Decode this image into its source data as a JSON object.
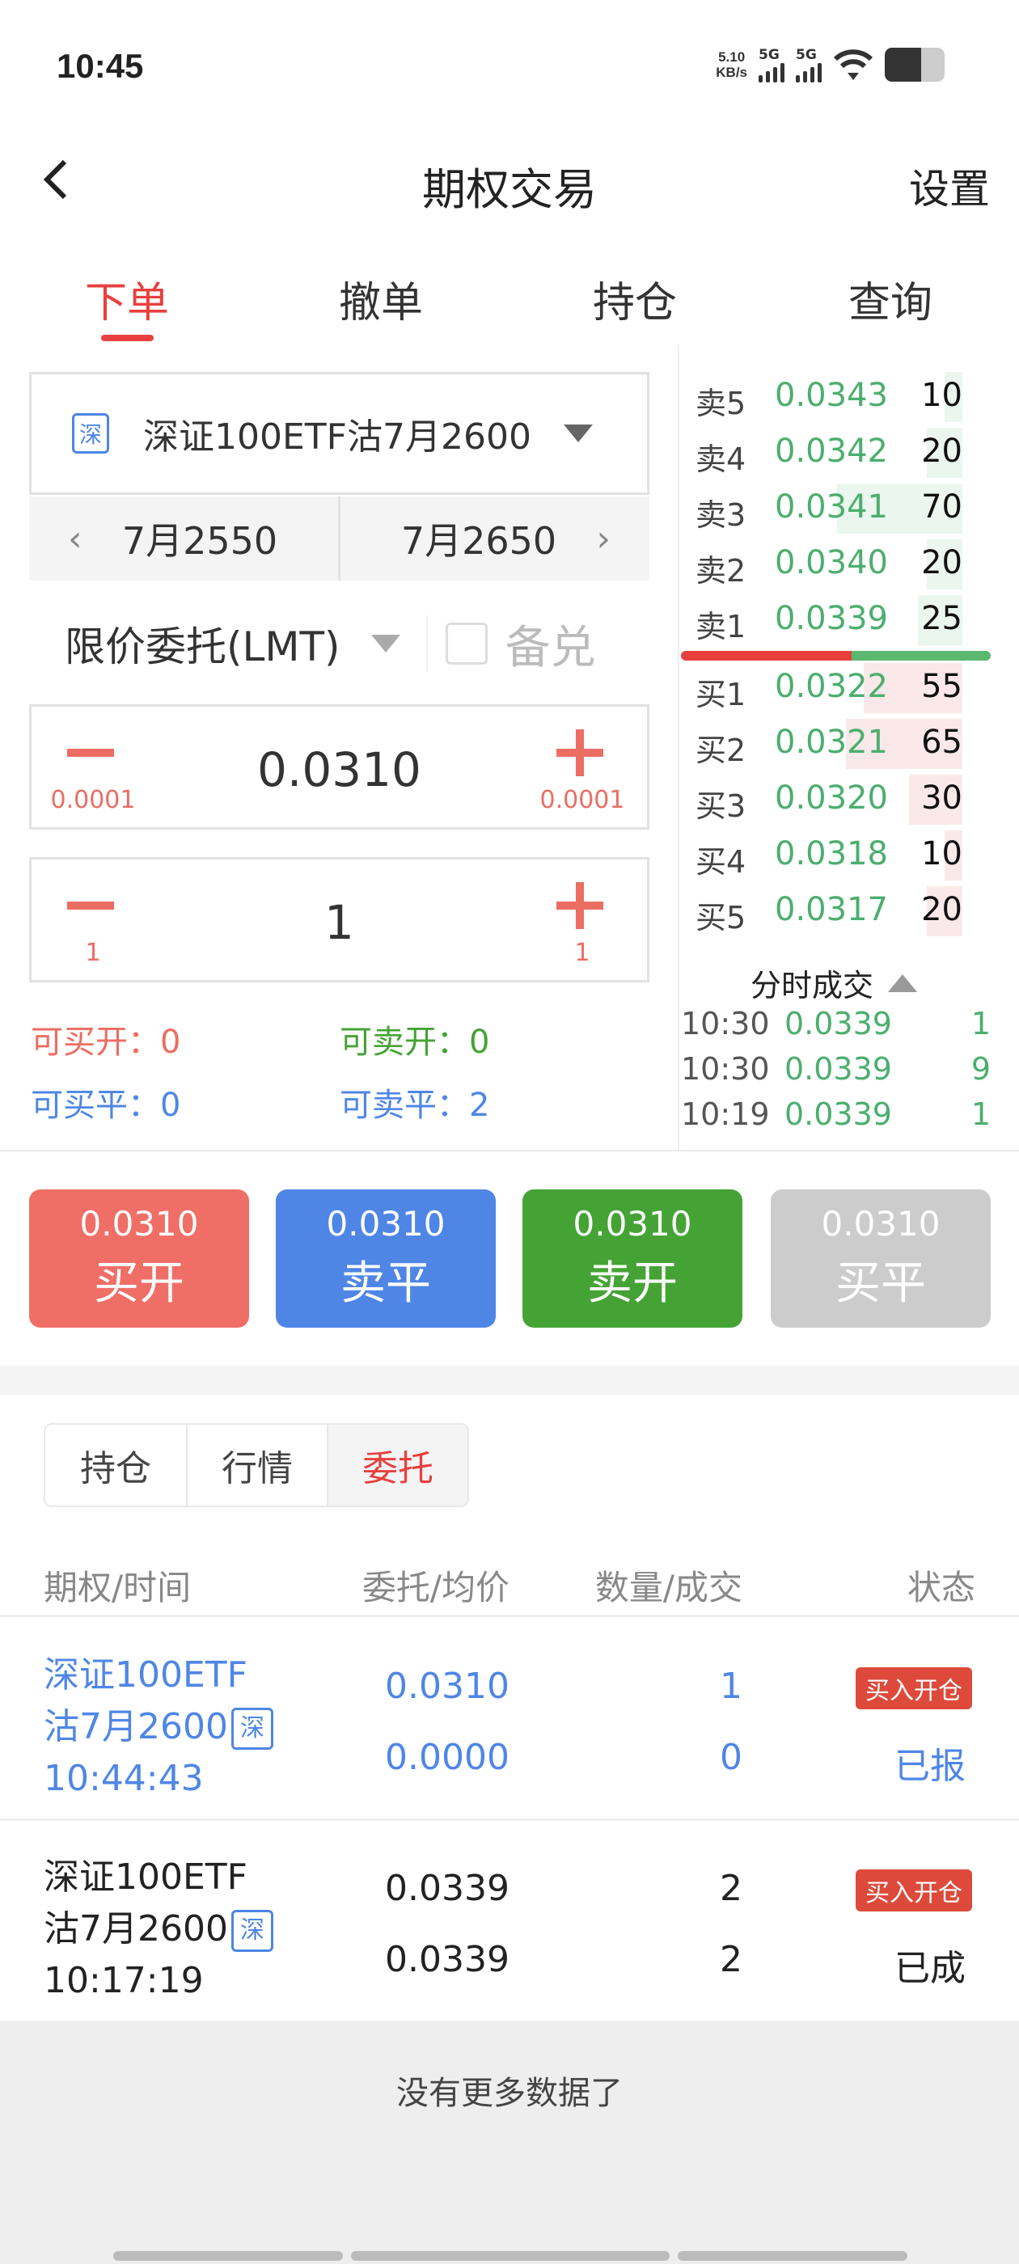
{
  "status_bar": {
    "time": "10:45",
    "net_speed": "5.10",
    "net_unit": "KB/s",
    "sim1": "5G",
    "sim2": "5G",
    "battery_level": 0.6,
    "icons": [
      "signal-icon",
      "signal-icon",
      "wifi-icon",
      "battery-icon"
    ]
  },
  "nav": {
    "back_icon": "chevron-left-icon",
    "title": "期权交易",
    "settings": "设置"
  },
  "tabs": [
    {
      "label": "下单",
      "active": true
    },
    {
      "label": "撤单"
    },
    {
      "label": "持仓"
    },
    {
      "label": "查询"
    }
  ],
  "order_form": {
    "exchange_badge": "深",
    "contract": "深证100ETF沽7月2600",
    "prev_strike": "7月2550",
    "next_strike": "7月2650",
    "order_type": "限价委托(LMT)",
    "covered_label": "备兑",
    "covered_checked": false,
    "price": {
      "value": "0.0310",
      "minus_step": "0.0001",
      "plus_step": "0.0001"
    },
    "quantity": {
      "value": "1",
      "minus_step": "1",
      "plus_step": "1"
    },
    "available": {
      "buy_open_label": "可买开：",
      "buy_open": "0",
      "sell_open_label": "可卖开：",
      "sell_open": "0",
      "buy_close_label": "可买平：",
      "buy_close": "0",
      "sell_close_label": "可卖平：",
      "sell_close": "2"
    }
  },
  "order_book": {
    "asks": [
      {
        "label": "卖5",
        "price": "0.0343",
        "qty": "10"
      },
      {
        "label": "卖4",
        "price": "0.0342",
        "qty": "20"
      },
      {
        "label": "卖3",
        "price": "0.0341",
        "qty": "70"
      },
      {
        "label": "卖2",
        "price": "0.0340",
        "qty": "20"
      },
      {
        "label": "卖1",
        "price": "0.0339",
        "qty": "25"
      }
    ],
    "bids": [
      {
        "label": "买1",
        "price": "0.0322",
        "qty": "55"
      },
      {
        "label": "买2",
        "price": "0.0321",
        "qty": "65"
      },
      {
        "label": "买3",
        "price": "0.0320",
        "qty": "30"
      },
      {
        "label": "买4",
        "price": "0.0318",
        "qty": "10"
      },
      {
        "label": "买5",
        "price": "0.0317",
        "qty": "20"
      }
    ],
    "buy_sell_ratio": 0.55,
    "colors": {
      "price": "#4cae6e",
      "buy": "#e8403f",
      "sell": "#5bb86f"
    },
    "ticks_title": "分时成交",
    "ticks": [
      {
        "time": "10:30",
        "price": "0.0339",
        "qty": "1"
      },
      {
        "time": "10:30",
        "price": "0.0339",
        "qty": "9"
      },
      {
        "time": "10:19",
        "price": "0.0339",
        "qty": "1"
      }
    ]
  },
  "actions": [
    {
      "price": "0.0310",
      "label": "买开",
      "color": "#ef6f67"
    },
    {
      "price": "0.0310",
      "label": "卖平",
      "color": "#4f86e6"
    },
    {
      "price": "0.0310",
      "label": "卖开",
      "color": "#45a335"
    },
    {
      "price": "0.0310",
      "label": "买平",
      "color": "#cccccc"
    }
  ],
  "sub_tabs": [
    {
      "label": "持仓"
    },
    {
      "label": "行情"
    },
    {
      "label": "委托",
      "active": true
    }
  ],
  "orders_table": {
    "headers": [
      "期权/时间",
      "委托/均价",
      "数量/成交",
      "状态"
    ],
    "rows": [
      {
        "name1": "深证100ETF",
        "name2": "沽7月2600",
        "badge": "深",
        "time": "10:44:43",
        "price": "0.0310",
        "avg": "0.0000",
        "qty": "1",
        "filled": "0",
        "side": "买入开仓",
        "status": "已报",
        "highlight": true
      },
      {
        "name1": "深证100ETF",
        "name2": "沽7月2600",
        "badge": "深",
        "time": "10:17:19",
        "price": "0.0339",
        "avg": "0.0339",
        "qty": "2",
        "filled": "2",
        "side": "买入开仓",
        "status": "已成",
        "highlight": false
      }
    ],
    "no_more": "没有更多数据了"
  }
}
